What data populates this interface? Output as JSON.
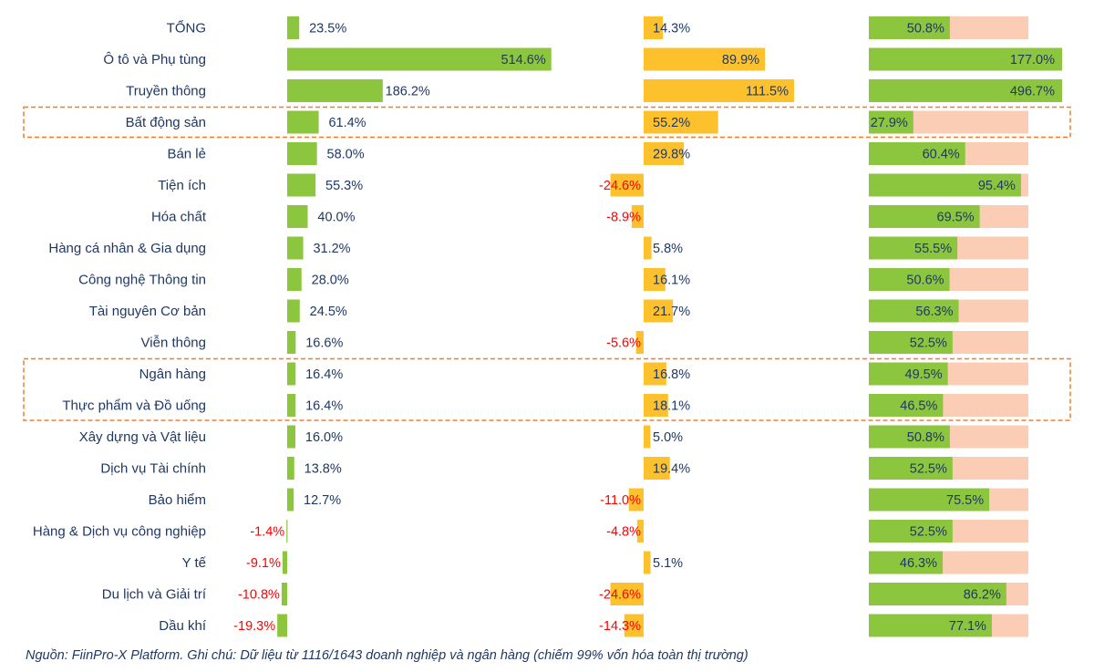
{
  "chart_data": {
    "type": "bar",
    "orientation": "horizontal",
    "categories": [
      "TỔNG",
      "Ô tô và Phụ tùng",
      "Truyền thông",
      "Bất động sản",
      "Bán lẻ",
      "Tiện ích",
      "Hóa chất",
      "Hàng cá nhân & Gia dụng",
      "Công nghệ Thông tin",
      "Tài nguyên Cơ bản",
      "Viễn thông",
      "Ngân hàng",
      "Thực phẩm và Đồ uống",
      "Xây dựng và Vật liệu",
      "Dịch vụ Tài chính",
      "Bảo hiểm",
      "Hàng & Dịch vụ công nghiệp",
      "Y tế",
      "Du lịch và Giải trí",
      "Dầu khí"
    ],
    "series": [
      {
        "values": [
          23.5,
          514.6,
          186.2,
          61.4,
          58.0,
          55.3,
          40.0,
          31.2,
          28.0,
          24.5,
          16.6,
          16.4,
          16.4,
          16.0,
          13.8,
          12.7,
          -1.4,
          -9.1,
          -10.8,
          -19.3
        ]
      },
      {
        "values": [
          14.3,
          89.9,
          111.5,
          55.2,
          29.8,
          -24.6,
          -8.9,
          5.8,
          16.1,
          21.7,
          -5.6,
          16.8,
          18.1,
          5.0,
          19.4,
          -11.0,
          -4.8,
          5.1,
          -24.6,
          -14.3
        ]
      },
      {
        "values": [
          50.8,
          177.0,
          496.7,
          27.9,
          60.4,
          95.4,
          69.5,
          55.5,
          50.6,
          56.3,
          52.5,
          49.5,
          46.5,
          50.8,
          52.5,
          75.5,
          52.5,
          46.3,
          86.2,
          77.1
        ]
      }
    ],
    "highlighted_categories": [
      "Bất động sản",
      "Ngân hàng",
      "Thực phẩm và Đồ uống"
    ],
    "value_format": "percent_1dp",
    "colors": {
      "series1": "#8cc63f",
      "series2": "#fcc12d",
      "series3": "#8cc63f",
      "track": "#fbcdb5",
      "negative_label": "#ff0000",
      "label": "#1f3864",
      "highlight_box": "#ed7d31"
    }
  },
  "source_note": "Nguồn: FiinPro-X Platform. Ghi chú: Dữ liệu từ 1116/1643 doanh nghiệp và ngân hàng (chiếm 99% vốn hóa toàn thị trường)"
}
